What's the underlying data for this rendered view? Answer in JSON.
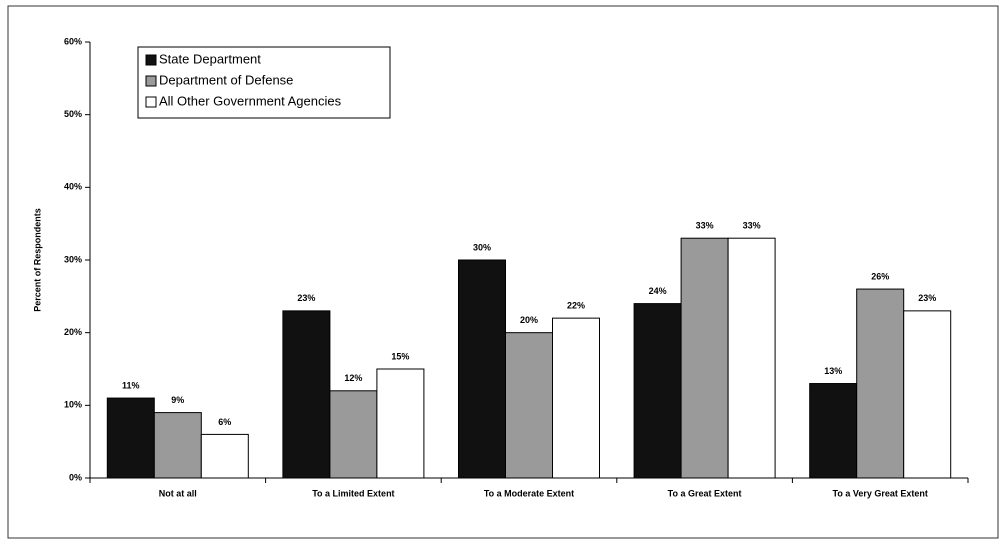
{
  "chart_data": {
    "type": "bar",
    "y_label": "Percent of Respondents",
    "categories": [
      "Not at all",
      "To a Limited Extent",
      "To a Moderate Extent",
      "To a Great Extent",
      "To a Very Great Extent"
    ],
    "series": [
      {
        "name": "State Department",
        "color": "#111111",
        "values": [
          11,
          23,
          30,
          24,
          13
        ],
        "value_labels": [
          "11%",
          "23%",
          "30%",
          "24%",
          "13%"
        ]
      },
      {
        "name": "Department of Defense",
        "color": "#9a9a9a",
        "values": [
          9,
          12,
          20,
          33,
          26
        ],
        "value_labels": [
          "9%",
          "12%",
          "20%",
          "33%",
          "26%"
        ]
      },
      {
        "name": "All Other Government Agencies",
        "color": "#ffffff",
        "values": [
          6,
          15,
          22,
          33,
          23
        ],
        "value_labels": [
          "6%",
          "15%",
          "22%",
          "33%",
          "23%"
        ]
      }
    ],
    "ylim": [
      0,
      60
    ],
    "yticks": [
      {
        "value": 0,
        "label": "0%"
      },
      {
        "value": 10,
        "label": "10%"
      },
      {
        "value": 20,
        "label": "20%"
      },
      {
        "value": 30,
        "label": "30%"
      },
      {
        "value": 40,
        "label": "40%"
      },
      {
        "value": 50,
        "label": "50%"
      },
      {
        "value": 60,
        "label": "60%"
      }
    ],
    "legend": "upper left",
    "grid": false
  }
}
